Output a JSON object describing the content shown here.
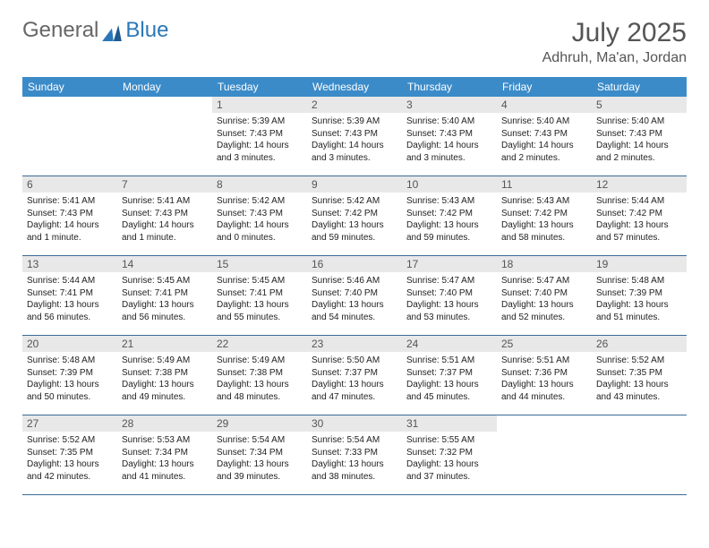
{
  "logo": {
    "text1": "General",
    "text2": "Blue",
    "color1": "#777777",
    "color2": "#2b77b8"
  },
  "title": "July 2025",
  "location": "Adhruh, Ma'an, Jordan",
  "colors": {
    "header_bg": "#3b8bc9",
    "header_text": "#ffffff",
    "daynum_bg": "#e8e8e8",
    "daynum_text": "#555555",
    "cell_border": "#3b6a95",
    "body_text": "#222222"
  },
  "day_headers": [
    "Sunday",
    "Monday",
    "Tuesday",
    "Wednesday",
    "Thursday",
    "Friday",
    "Saturday"
  ],
  "weeks": [
    [
      null,
      null,
      {
        "n": "1",
        "sr": "Sunrise: 5:39 AM",
        "ss": "Sunset: 7:43 PM",
        "dl": "Daylight: 14 hours and 3 minutes."
      },
      {
        "n": "2",
        "sr": "Sunrise: 5:39 AM",
        "ss": "Sunset: 7:43 PM",
        "dl": "Daylight: 14 hours and 3 minutes."
      },
      {
        "n": "3",
        "sr": "Sunrise: 5:40 AM",
        "ss": "Sunset: 7:43 PM",
        "dl": "Daylight: 14 hours and 3 minutes."
      },
      {
        "n": "4",
        "sr": "Sunrise: 5:40 AM",
        "ss": "Sunset: 7:43 PM",
        "dl": "Daylight: 14 hours and 2 minutes."
      },
      {
        "n": "5",
        "sr": "Sunrise: 5:40 AM",
        "ss": "Sunset: 7:43 PM",
        "dl": "Daylight: 14 hours and 2 minutes."
      }
    ],
    [
      {
        "n": "6",
        "sr": "Sunrise: 5:41 AM",
        "ss": "Sunset: 7:43 PM",
        "dl": "Daylight: 14 hours and 1 minute."
      },
      {
        "n": "7",
        "sr": "Sunrise: 5:41 AM",
        "ss": "Sunset: 7:43 PM",
        "dl": "Daylight: 14 hours and 1 minute."
      },
      {
        "n": "8",
        "sr": "Sunrise: 5:42 AM",
        "ss": "Sunset: 7:43 PM",
        "dl": "Daylight: 14 hours and 0 minutes."
      },
      {
        "n": "9",
        "sr": "Sunrise: 5:42 AM",
        "ss": "Sunset: 7:42 PM",
        "dl": "Daylight: 13 hours and 59 minutes."
      },
      {
        "n": "10",
        "sr": "Sunrise: 5:43 AM",
        "ss": "Sunset: 7:42 PM",
        "dl": "Daylight: 13 hours and 59 minutes."
      },
      {
        "n": "11",
        "sr": "Sunrise: 5:43 AM",
        "ss": "Sunset: 7:42 PM",
        "dl": "Daylight: 13 hours and 58 minutes."
      },
      {
        "n": "12",
        "sr": "Sunrise: 5:44 AM",
        "ss": "Sunset: 7:42 PM",
        "dl": "Daylight: 13 hours and 57 minutes."
      }
    ],
    [
      {
        "n": "13",
        "sr": "Sunrise: 5:44 AM",
        "ss": "Sunset: 7:41 PM",
        "dl": "Daylight: 13 hours and 56 minutes."
      },
      {
        "n": "14",
        "sr": "Sunrise: 5:45 AM",
        "ss": "Sunset: 7:41 PM",
        "dl": "Daylight: 13 hours and 56 minutes."
      },
      {
        "n": "15",
        "sr": "Sunrise: 5:45 AM",
        "ss": "Sunset: 7:41 PM",
        "dl": "Daylight: 13 hours and 55 minutes."
      },
      {
        "n": "16",
        "sr": "Sunrise: 5:46 AM",
        "ss": "Sunset: 7:40 PM",
        "dl": "Daylight: 13 hours and 54 minutes."
      },
      {
        "n": "17",
        "sr": "Sunrise: 5:47 AM",
        "ss": "Sunset: 7:40 PM",
        "dl": "Daylight: 13 hours and 53 minutes."
      },
      {
        "n": "18",
        "sr": "Sunrise: 5:47 AM",
        "ss": "Sunset: 7:40 PM",
        "dl": "Daylight: 13 hours and 52 minutes."
      },
      {
        "n": "19",
        "sr": "Sunrise: 5:48 AM",
        "ss": "Sunset: 7:39 PM",
        "dl": "Daylight: 13 hours and 51 minutes."
      }
    ],
    [
      {
        "n": "20",
        "sr": "Sunrise: 5:48 AM",
        "ss": "Sunset: 7:39 PM",
        "dl": "Daylight: 13 hours and 50 minutes."
      },
      {
        "n": "21",
        "sr": "Sunrise: 5:49 AM",
        "ss": "Sunset: 7:38 PM",
        "dl": "Daylight: 13 hours and 49 minutes."
      },
      {
        "n": "22",
        "sr": "Sunrise: 5:49 AM",
        "ss": "Sunset: 7:38 PM",
        "dl": "Daylight: 13 hours and 48 minutes."
      },
      {
        "n": "23",
        "sr": "Sunrise: 5:50 AM",
        "ss": "Sunset: 7:37 PM",
        "dl": "Daylight: 13 hours and 47 minutes."
      },
      {
        "n": "24",
        "sr": "Sunrise: 5:51 AM",
        "ss": "Sunset: 7:37 PM",
        "dl": "Daylight: 13 hours and 45 minutes."
      },
      {
        "n": "25",
        "sr": "Sunrise: 5:51 AM",
        "ss": "Sunset: 7:36 PM",
        "dl": "Daylight: 13 hours and 44 minutes."
      },
      {
        "n": "26",
        "sr": "Sunrise: 5:52 AM",
        "ss": "Sunset: 7:35 PM",
        "dl": "Daylight: 13 hours and 43 minutes."
      }
    ],
    [
      {
        "n": "27",
        "sr": "Sunrise: 5:52 AM",
        "ss": "Sunset: 7:35 PM",
        "dl": "Daylight: 13 hours and 42 minutes."
      },
      {
        "n": "28",
        "sr": "Sunrise: 5:53 AM",
        "ss": "Sunset: 7:34 PM",
        "dl": "Daylight: 13 hours and 41 minutes."
      },
      {
        "n": "29",
        "sr": "Sunrise: 5:54 AM",
        "ss": "Sunset: 7:34 PM",
        "dl": "Daylight: 13 hours and 39 minutes."
      },
      {
        "n": "30",
        "sr": "Sunrise: 5:54 AM",
        "ss": "Sunset: 7:33 PM",
        "dl": "Daylight: 13 hours and 38 minutes."
      },
      {
        "n": "31",
        "sr": "Sunrise: 5:55 AM",
        "ss": "Sunset: 7:32 PM",
        "dl": "Daylight: 13 hours and 37 minutes."
      },
      null,
      null
    ]
  ]
}
